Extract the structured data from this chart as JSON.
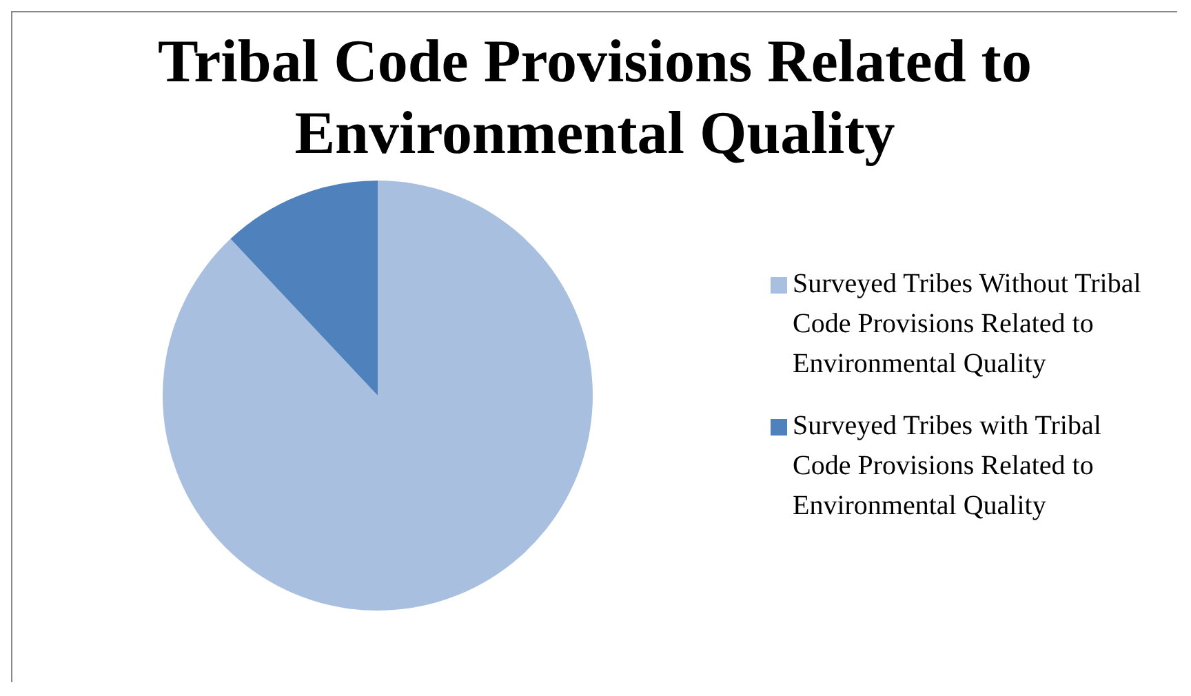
{
  "chart_data": {
    "type": "pie",
    "title": "Tribal Code Provisions Related to Environmental Quality",
    "categories": [
      "Surveyed Tribes Without Tribal Code Provisions Related to Environmental Quality",
      "Surveyed Tribes with Tribal Code Provisions Related to Environmental Quality"
    ],
    "values": [
      88,
      12
    ],
    "colors": [
      "#a9bfdf",
      "#4f81bd"
    ],
    "legend": "right"
  }
}
